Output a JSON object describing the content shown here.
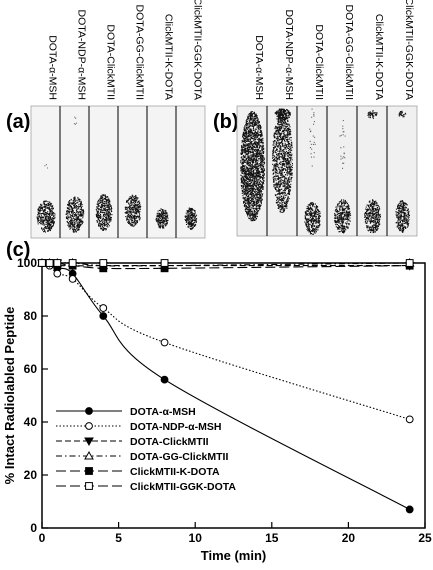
{
  "panel_a": {
    "letter": "(a)",
    "lanes": [
      "DOTA-α-MSH",
      "DOTA-NDP-α-MSH",
      "DOTA-ClickMTII",
      "DOTA-GG-ClickMTII",
      "ClickMTII-K-DOTA",
      "ClickMTII-GGK-DOTA"
    ]
  },
  "panel_b": {
    "letter": "(b)",
    "lanes": [
      "DOTA-α-MSH",
      "DOTA-NDP-α-MSH",
      "DOTA-ClickMTII",
      "DOTA-GG-ClickMTII",
      "ClickMTII-K-DOTA",
      "ClickMTII-GGK-DOTA"
    ]
  },
  "panel_c": {
    "letter": "(c)"
  },
  "chart_data": {
    "type": "line",
    "xlabel": "Time (min)",
    "ylabel": "% Intact Radiolabled Peptide",
    "xlim": [
      0,
      25
    ],
    "ylim": [
      0,
      100
    ],
    "xticks": [
      0,
      5,
      10,
      15,
      20,
      25
    ],
    "yticks": [
      0,
      20,
      40,
      60,
      80,
      100
    ],
    "legend_position": "lower-left",
    "series": [
      {
        "name": "DOTA-α-MSH",
        "marker": "circle-filled",
        "line": "solid",
        "x": [
          0,
          0.5,
          1,
          2,
          4,
          8,
          24
        ],
        "y": [
          100,
          99,
          98,
          96,
          80,
          56,
          7
        ]
      },
      {
        "name": "DOTA-NDP-α-MSH",
        "marker": "circle-open",
        "line": "dotted",
        "x": [
          0,
          0.5,
          1,
          2,
          4,
          8,
          24
        ],
        "y": [
          100,
          99,
          96,
          94,
          83,
          70,
          41
        ]
      },
      {
        "name": "DOTA-ClickMTII",
        "marker": "triangle-down-filled",
        "line": "dashed",
        "x": [
          0,
          0.5,
          1,
          2,
          4,
          8,
          24
        ],
        "y": [
          100,
          100,
          100,
          99,
          99,
          99,
          99
        ]
      },
      {
        "name": "DOTA-GG-ClickMTII",
        "marker": "triangle-up-open",
        "line": "dash-dot",
        "x": [
          0,
          0.5,
          1,
          2,
          4,
          8,
          24
        ],
        "y": [
          100,
          100,
          100,
          100,
          99,
          99,
          100
        ]
      },
      {
        "name": "ClickMTII-K-DOTA",
        "marker": "square-filled",
        "line": "long-dash",
        "x": [
          0,
          0.5,
          1,
          2,
          4,
          8,
          24
        ],
        "y": [
          100,
          100,
          99,
          99,
          98,
          98,
          99
        ]
      },
      {
        "name": "ClickMTII-GGK-DOTA",
        "marker": "square-open",
        "line": "long-dash",
        "x": [
          0,
          0.5,
          1,
          2,
          4,
          8,
          24
        ],
        "y": [
          100,
          100,
          100,
          100,
          100,
          100,
          100
        ]
      }
    ]
  }
}
